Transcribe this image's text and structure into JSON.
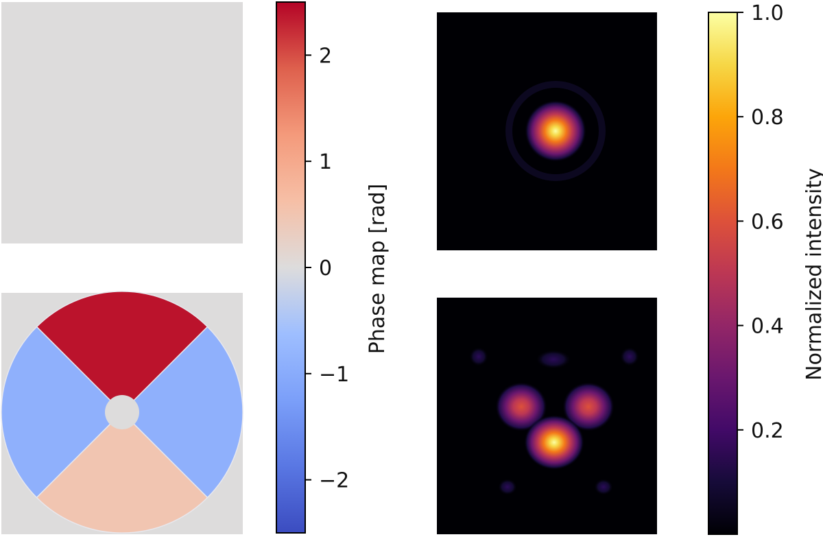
{
  "chart_data": [
    {
      "type": "heatmap",
      "panel": "phase map, flat",
      "description_values": {
        "uniform_phase_rad": 0
      }
    },
    {
      "type": "heatmap",
      "panel": "phase map, four-quadrant",
      "segments": [
        {
          "position": "top",
          "phase_rad": 2.4
        },
        {
          "position": "left",
          "phase_rad": -0.9
        },
        {
          "position": "right",
          "phase_rad": -0.9
        },
        {
          "position": "bottom",
          "phase_rad": 0.5
        }
      ],
      "central_obstruction": true
    },
    {
      "type": "colorbar",
      "colormap": "coolwarm",
      "label": "Phase map [rad]",
      "range": [
        -2.5,
        2.5
      ],
      "ticks": [
        2,
        1,
        0,
        -1,
        -2
      ],
      "tick_labels": [
        "2",
        "1",
        "0",
        "−1",
        "−2"
      ]
    },
    {
      "type": "heatmap",
      "panel": "PSF, flat phase",
      "colormap": "inferno",
      "peaks": [
        {
          "x": 0.5,
          "y": 0.5,
          "intensity": 1.0,
          "width": 0.08
        }
      ]
    },
    {
      "type": "heatmap",
      "panel": "PSF, four-quadrant phase",
      "colormap": "inferno",
      "peaks": [
        {
          "x": 0.5,
          "y": 0.6,
          "intensity": 1.0
        },
        {
          "x": 0.36,
          "y": 0.44,
          "intensity": 0.55
        },
        {
          "x": 0.64,
          "y": 0.44,
          "intensity": 0.55
        },
        {
          "x": 0.5,
          "y": 0.3,
          "intensity": 0.12
        }
      ]
    },
    {
      "type": "colorbar",
      "colormap": "inferno",
      "label": "Normalized intensity",
      "range": [
        0.0,
        1.0
      ],
      "ticks": [
        1.0,
        0.8,
        0.6,
        0.4,
        0.2
      ],
      "tick_labels": [
        "1.0",
        "0.8",
        "0.6",
        "0.4",
        "0.2"
      ]
    }
  ]
}
